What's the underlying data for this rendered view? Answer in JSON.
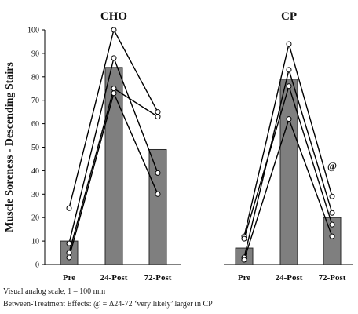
{
  "chart_data": {
    "type": "bar",
    "ylabel": "Muscle Soreness - Descending Stairs",
    "ylim": [
      0,
      100
    ],
    "yticks": [
      0,
      10,
      20,
      30,
      40,
      50,
      60,
      70,
      80,
      90,
      100
    ],
    "grid": false,
    "panels": [
      {
        "title": "CHO",
        "categories": [
          "Pre",
          "24-Post",
          "72-Post"
        ],
        "means": [
          10,
          84,
          49
        ],
        "individuals": [
          [
            24,
            100,
            65
          ],
          [
            9,
            88,
            39
          ],
          [
            5,
            75,
            63
          ],
          [
            3,
            73,
            30
          ]
        ]
      },
      {
        "title": "CP",
        "categories": [
          "Pre",
          "24-Post",
          "72-Post"
        ],
        "means": [
          7,
          79,
          20
        ],
        "individuals": [
          [
            12,
            94,
            29
          ],
          [
            3,
            83,
            22
          ],
          [
            11,
            76,
            17
          ],
          [
            2,
            62,
            12
          ]
        ],
        "annotations": [
          {
            "text": "@",
            "category": "72-Post",
            "y": 42
          }
        ]
      }
    ]
  },
  "notes": {
    "line1": "Visual analog scale, 1 – 100 mm",
    "line2": "Between-Treatment Effects: @ = Δ24-72 ‘very likely’ larger in CP"
  }
}
